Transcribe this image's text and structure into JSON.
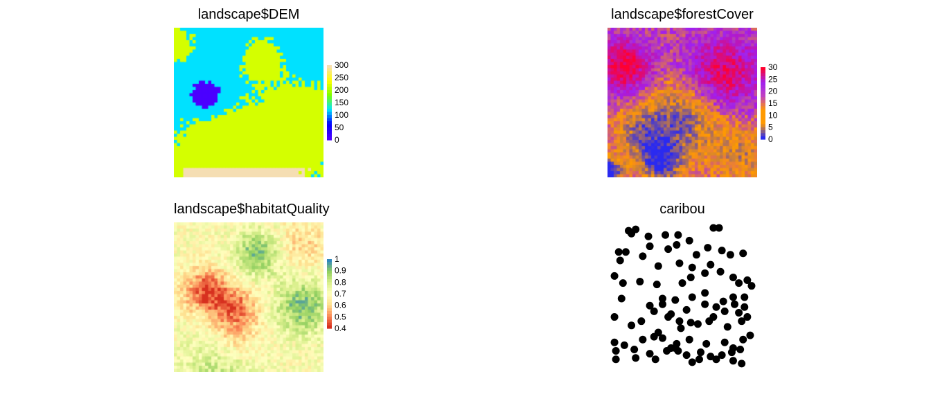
{
  "chart_data": [
    {
      "type": "heatmap",
      "title": "landscape$DEM",
      "legend": {
        "ticks": [
          300,
          250,
          200,
          150,
          100,
          50,
          0
        ],
        "range": [
          0,
          300
        ],
        "placement": "right"
      },
      "colors": [
        "#4B00FF",
        "#0000FF",
        "#00E5FF",
        "#00FF00",
        "#FFFF00",
        "#F8E0B0"
      ],
      "cell_grid": [
        48,
        48
      ],
      "value_range": [
        0,
        300
      ]
    },
    {
      "type": "heatmap",
      "title": "landscape$forestCover",
      "legend": {
        "ticks": [
          30,
          25,
          20,
          15,
          10,
          5,
          0
        ],
        "range": [
          0,
          30
        ],
        "placement": "right"
      },
      "colors": [
        "#0000FF",
        "#FF9900",
        "#9900FF",
        "#FF0033"
      ],
      "cell_grid": [
        48,
        48
      ],
      "value_range": [
        0,
        30
      ]
    },
    {
      "type": "heatmap",
      "title": "landscape$habitatQuality",
      "legend": {
        "ticks": [
          1,
          0.9,
          0.8,
          0.7,
          0.6,
          0.5,
          0.4
        ],
        "range": [
          0.4,
          1
        ],
        "placement": "right"
      },
      "colors": [
        "#D7301F",
        "#FC8D59",
        "#FEE090",
        "#FFFFBF",
        "#D9EF8B",
        "#91CF60",
        "#3288BD"
      ],
      "cell_grid": [
        48,
        48
      ],
      "value_range": [
        0.4,
        1
      ]
    },
    {
      "type": "scatter",
      "title": "caribou",
      "color": "#000000",
      "xlim": [
        0,
        1
      ],
      "ylim": [
        0,
        1
      ],
      "points": [
        [
          0.12,
          0.97
        ],
        [
          0.14,
          0.95
        ],
        [
          0.26,
          0.93
        ],
        [
          0.38,
          0.94
        ],
        [
          0.47,
          0.94
        ],
        [
          0.55,
          0.9
        ],
        [
          0.72,
          0.99
        ],
        [
          0.76,
          0.99
        ],
        [
          0.05,
          0.82
        ],
        [
          0.1,
          0.82
        ],
        [
          0.27,
          0.86
        ],
        [
          0.4,
          0.84
        ],
        [
          0.46,
          0.87
        ],
        [
          0.6,
          0.8
        ],
        [
          0.68,
          0.85
        ],
        [
          0.84,
          0.8
        ],
        [
          0.93,
          0.81
        ],
        [
          0.06,
          0.76
        ],
        [
          0.22,
          0.79
        ],
        [
          0.33,
          0.72
        ],
        [
          0.48,
          0.74
        ],
        [
          0.57,
          0.71
        ],
        [
          0.7,
          0.73
        ],
        [
          0.77,
          0.68
        ],
        [
          0.02,
          0.65
        ],
        [
          0.08,
          0.6
        ],
        [
          0.2,
          0.61
        ],
        [
          0.32,
          0.59
        ],
        [
          0.5,
          0.6
        ],
        [
          0.56,
          0.64
        ],
        [
          0.66,
          0.67
        ],
        [
          0.86,
          0.64
        ],
        [
          0.9,
          0.6
        ],
        [
          0.96,
          0.62
        ],
        [
          0.99,
          0.58
        ],
        [
          0.07,
          0.49
        ],
        [
          0.27,
          0.44
        ],
        [
          0.36,
          0.45
        ],
        [
          0.45,
          0.48
        ],
        [
          0.57,
          0.5
        ],
        [
          0.66,
          0.53
        ],
        [
          0.79,
          0.47
        ],
        [
          0.86,
          0.5
        ],
        [
          0.94,
          0.5
        ],
        [
          0.3,
          0.4
        ],
        [
          0.42,
          0.38
        ],
        [
          0.53,
          0.41
        ],
        [
          0.74,
          0.43
        ],
        [
          0.8,
          0.4
        ],
        [
          0.87,
          0.45
        ],
        [
          0.02,
          0.36
        ],
        [
          0.21,
          0.33
        ],
        [
          0.48,
          0.33
        ],
        [
          0.56,
          0.32
        ],
        [
          0.61,
          0.31
        ],
        [
          0.69,
          0.33
        ],
        [
          0.92,
          0.33
        ],
        [
          0.33,
          0.25
        ],
        [
          0.49,
          0.28
        ],
        [
          0.22,
          0.2
        ],
        [
          0.3,
          0.22
        ],
        [
          0.36,
          0.21
        ],
        [
          0.46,
          0.17
        ],
        [
          0.55,
          0.2
        ],
        [
          0.67,
          0.17
        ],
        [
          0.8,
          0.18
        ],
        [
          0.86,
          0.14
        ],
        [
          0.93,
          0.2
        ],
        [
          0.02,
          0.18
        ],
        [
          0.09,
          0.16
        ],
        [
          0.16,
          0.13
        ],
        [
          0.27,
          0.1
        ],
        [
          0.39,
          0.12
        ],
        [
          0.47,
          0.12
        ],
        [
          0.63,
          0.11
        ],
        [
          0.7,
          0.08
        ],
        [
          0.78,
          0.09
        ],
        [
          0.85,
          0.11
        ],
        [
          0.91,
          0.13
        ],
        [
          0.03,
          0.12
        ],
        [
          0.17,
          0.07
        ],
        [
          0.31,
          0.06
        ],
        [
          0.57,
          0.04
        ],
        [
          0.74,
          0.06
        ],
        [
          0.86,
          0.05
        ],
        [
          0.92,
          0.03
        ],
        [
          0.03,
          0.06
        ],
        [
          0.62,
          0.06
        ],
        [
          0.96,
          0.36
        ],
        [
          0.98,
          0.23
        ],
        [
          0.9,
          0.39
        ],
        [
          0.94,
          0.43
        ],
        [
          0.82,
          0.29
        ],
        [
          0.72,
          0.36
        ],
        [
          0.66,
          0.45
        ],
        [
          0.14,
          0.3
        ],
        [
          0.17,
          0.98
        ],
        [
          0.36,
          0.49
        ],
        [
          0.4,
          0.36
        ],
        [
          0.42,
          0.14
        ],
        [
          0.45,
          0.14
        ],
        [
          0.53,
          0.09
        ],
        [
          0.78,
          0.83
        ]
      ]
    }
  ]
}
